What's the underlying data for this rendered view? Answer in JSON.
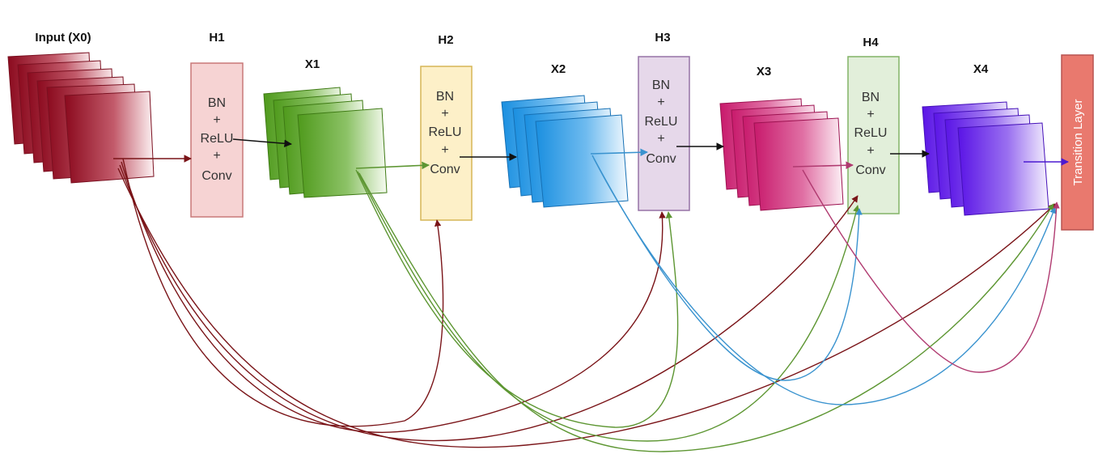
{
  "labels": {
    "input": "Input (X0)",
    "h1": "H1",
    "h2": "H2",
    "h3": "H3",
    "h4": "H4",
    "x1": "X1",
    "x2": "X2",
    "x3": "X3",
    "x4": "X4"
  },
  "layer_box": {
    "line1": "BN",
    "line2": "+",
    "line3": "ReLU",
    "line4": "+",
    "line5": "Conv"
  },
  "transition_label": "Transition Layer",
  "colors": {
    "input_maps": "#8b0a1e",
    "x1_maps": "#4f9a1c",
    "x2_maps": "#1a8fe0",
    "x3_maps": "#c81a6c",
    "x4_maps": "#5a14e6",
    "h1_fill": "#f6d3d3",
    "h1_stroke": "#c87878",
    "h2_fill": "#fdf0c8",
    "h2_stroke": "#d6b656",
    "h3_fill": "#e6d8ea",
    "h3_stroke": "#9673a6",
    "h4_fill": "#e2efda",
    "h4_stroke": "#82b366",
    "transition_fill": "#e9796e",
    "transition_stroke": "#b85450",
    "skip_from_input": "#7a1418",
    "skip_from_x1": "#5d9632",
    "skip_from_x2": "#3a93cf",
    "skip_from_x3": "#b03a70",
    "main_flow": "#111111"
  }
}
